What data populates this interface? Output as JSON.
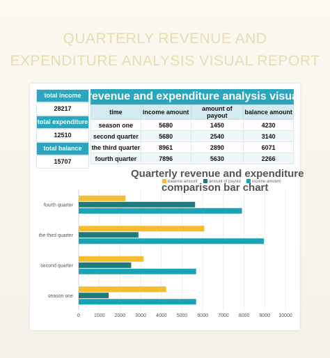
{
  "banner": {
    "line1": "QUARTERLY REVENUE AND",
    "line2": "EXPENDITURE ANALYSIS VISUAL REPORT"
  },
  "kpis": [
    {
      "label": "total income",
      "value": "28217"
    },
    {
      "label": "total expenditure",
      "value": "12510"
    },
    {
      "label": "total balance",
      "value": "15707"
    }
  ],
  "table": {
    "title": "rly revenue and expenditure analysis visua",
    "headers": [
      "time",
      "income amount",
      "amount of payout",
      "balance amount"
    ],
    "rows": [
      [
        "season one",
        "5680",
        "1450",
        "4230"
      ],
      [
        "second quarter",
        "5680",
        "2540",
        "3140"
      ],
      [
        "the third quarter",
        "8961",
        "2890",
        "6071"
      ],
      [
        "fourth quarter",
        "7896",
        "5630",
        "2266"
      ]
    ]
  },
  "colors": {
    "accent": "#2aa6bf",
    "balance": "#f5bd2f",
    "payout": "#1f7b7b",
    "income": "#19a4b3"
  },
  "chart_data": {
    "type": "bar",
    "orientation": "horizontal",
    "title": "Quarterly revenue and expenditure comparison bar chart",
    "categories": [
      "fourth quarter",
      "the third quarter",
      "second quarter",
      "season one"
    ],
    "series": [
      {
        "name": "balance amount",
        "values": [
          2266,
          6071,
          3140,
          4230
        ]
      },
      {
        "name": "amount of payout",
        "values": [
          5630,
          2890,
          2540,
          1450
        ]
      },
      {
        "name": "income amount",
        "values": [
          7896,
          8961,
          5680,
          5680
        ]
      }
    ],
    "xlim": [
      0,
      10000
    ],
    "xticks": [
      0,
      1000,
      2000,
      3000,
      4000,
      5000,
      6000,
      7000,
      8000,
      9000,
      10000
    ],
    "grid": true,
    "legend": "top-right"
  }
}
